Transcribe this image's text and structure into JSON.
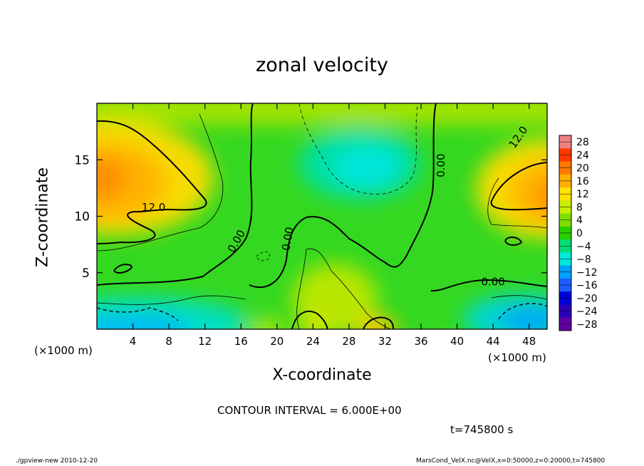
{
  "chart_data": {
    "type": "heatmap",
    "title": "zonal velocity",
    "xlabel": "X-coordinate",
    "ylabel": "Z-coordinate",
    "x_unit": "(×1000 m)",
    "xlim": [
      0,
      50
    ],
    "ylim": [
      0,
      20
    ],
    "x_ticks": [
      4,
      8,
      12,
      16,
      20,
      24,
      28,
      32,
      36,
      40,
      44,
      48
    ],
    "y_ticks": [
      5,
      10,
      15
    ],
    "colorbar": {
      "levels": [
        28,
        24,
        20,
        16,
        12,
        8,
        4,
        0,
        -4,
        -8,
        -12,
        -16,
        -20,
        -24,
        -28
      ],
      "level_labels": [
        "28",
        "24",
        "20",
        "16",
        "12",
        "8",
        "4",
        "0",
        "−4",
        "−8",
        "−12",
        "−16",
        "−20",
        "−24",
        "−28"
      ],
      "colors": [
        "#f08080",
        "#ff3a00",
        "#ff7a00",
        "#ffb000",
        "#ffe400",
        "#c8ee00",
        "#7fe000",
        "#28d000",
        "#00dc78",
        "#00e8d8",
        "#00a0ff",
        "#1e5cff",
        "#0000d8",
        "#2b00b8",
        "#6000a0"
      ]
    },
    "contour_labels": [
      {
        "text": "12.0",
        "x": 6.3,
        "z": 10.8
      },
      {
        "text": "12.0",
        "x": 46.8,
        "z": 17.0,
        "angle": -55
      },
      {
        "text": "0.00",
        "x": 15.5,
        "z": 7.8,
        "angle": -60
      },
      {
        "text": "0.00",
        "x": 21.2,
        "z": 8.0,
        "angle": -80
      },
      {
        "text": "0.00",
        "x": 38.2,
        "z": 14.5,
        "angle": -90
      },
      {
        "text": "0.00",
        "x": 44.0,
        "z": 4.2
      }
    ],
    "contour_interval": "CONTOUR INTERVAL = 6.000E+00",
    "time": "t=745800 s"
  },
  "footer": {
    "left": "./gpview-new  2010-12-20",
    "right": "MarsCond_VelX.nc@VelX,x=0:50000,z=0:20000,t=745800"
  }
}
